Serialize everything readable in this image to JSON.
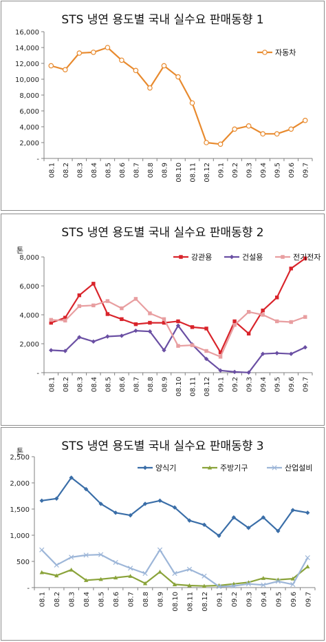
{
  "chart_data": [
    {
      "type": "line",
      "title": "STS 냉연 용도별 국내 실수요 판매동향 1",
      "unit_label": "",
      "categories": [
        "08.1",
        "08.2",
        "08.3",
        "08.4",
        "08.5",
        "08.6",
        "08.7",
        "08.8",
        "08.9",
        "08.10",
        "08.11",
        "08.12",
        "09.1",
        "09.2",
        "09.3",
        "09.4",
        "09.5",
        "09.6",
        "09.7"
      ],
      "ylim": [
        0,
        16000
      ],
      "yticks": [
        0,
        2000,
        4000,
        6000,
        8000,
        10000,
        12000,
        14000,
        16000
      ],
      "ytick_labels": [
        "-",
        "2,000",
        "4,000",
        "6,000",
        "8,000",
        "10,000",
        "12,000",
        "14,000",
        "16,000"
      ],
      "legend_position": "top-right",
      "series": [
        {
          "name": "자동차",
          "color": "#e88a2e",
          "marker": "circle-open",
          "values": [
            11700,
            11200,
            13300,
            13400,
            14000,
            12400,
            11100,
            8900,
            11700,
            10300,
            7000,
            2000,
            1800,
            3700,
            4100,
            3100,
            3100,
            3700,
            4800
          ]
        }
      ]
    },
    {
      "type": "line",
      "title": "STS 냉연 용도별 국내 실수요 판매동향 2",
      "unit_label": "톤",
      "categories": [
        "08.1",
        "08.2",
        "08.3",
        "08.4",
        "08.5",
        "08.6",
        "08.7",
        "08.8",
        "08.9",
        "08.10",
        "08.11",
        "08.12",
        "09.1",
        "09.2",
        "09.3",
        "09.4",
        "09.5",
        "09.6",
        "09.7"
      ],
      "ylim": [
        0,
        8000
      ],
      "yticks": [
        0,
        2000,
        4000,
        6000,
        8000
      ],
      "ytick_labels": [
        "-",
        "2,000",
        "4,000",
        "6,000",
        "8,000"
      ],
      "legend_position": "top-right",
      "series": [
        {
          "name": "강관용",
          "color": "#d9242b",
          "marker": "square",
          "values": [
            3450,
            3800,
            5350,
            6150,
            4050,
            3700,
            3350,
            3450,
            3450,
            3550,
            3150,
            3050,
            1400,
            3550,
            2700,
            4300,
            5200,
            7200,
            7900
          ]
        },
        {
          "name": "건설용",
          "color": "#6a4fa3",
          "marker": "diamond",
          "values": [
            1550,
            1500,
            2450,
            2150,
            2500,
            2550,
            2900,
            2850,
            1550,
            3250,
            1950,
            950,
            150,
            50,
            10,
            1300,
            1350,
            1300,
            1750
          ]
        },
        {
          "name": "전기전자",
          "color": "#e89ea0",
          "marker": "square",
          "values": [
            3650,
            3600,
            4600,
            4650,
            4950,
            4450,
            5100,
            4100,
            3700,
            1850,
            1900,
            1500,
            1100,
            3300,
            4200,
            4000,
            3550,
            3500,
            3850
          ]
        }
      ]
    },
    {
      "type": "line",
      "title": "STS 냉연 용도별 국내 실수요 판매동향 3",
      "unit_label": "톤",
      "categories": [
        "08.1",
        "08.2",
        "08.3",
        "08.4",
        "08.5",
        "08.6",
        "08.7",
        "08.8",
        "08.9",
        "08.10",
        "08.11",
        "08.12",
        "09.1",
        "09.2",
        "09.3",
        "09.4",
        "09.5",
        "09.6",
        "09.7"
      ],
      "ylim": [
        0,
        2500
      ],
      "yticks": [
        0,
        500,
        1000,
        1500,
        2000,
        2500
      ],
      "ytick_labels": [
        "-",
        "500",
        "1,000",
        "1,500",
        "2,000",
        "2,500"
      ],
      "legend_position": "top-right",
      "series": [
        {
          "name": "양식기",
          "color": "#3a6ea8",
          "marker": "diamond",
          "values": [
            1660,
            1700,
            2100,
            1880,
            1600,
            1430,
            1380,
            1600,
            1660,
            1530,
            1280,
            1200,
            990,
            1340,
            1140,
            1340,
            1080,
            1480,
            1430
          ]
        },
        {
          "name": "주방기구",
          "color": "#8aa33a",
          "marker": "triangle",
          "values": [
            290,
            230,
            340,
            140,
            160,
            190,
            220,
            80,
            300,
            60,
            40,
            30,
            40,
            70,
            100,
            180,
            150,
            170,
            400
          ]
        },
        {
          "name": "산업설비",
          "color": "#9db6d8",
          "marker": "x",
          "values": [
            720,
            430,
            580,
            620,
            630,
            480,
            370,
            270,
            720,
            270,
            350,
            220,
            20,
            30,
            70,
            50,
            120,
            60,
            570
          ]
        }
      ]
    }
  ]
}
